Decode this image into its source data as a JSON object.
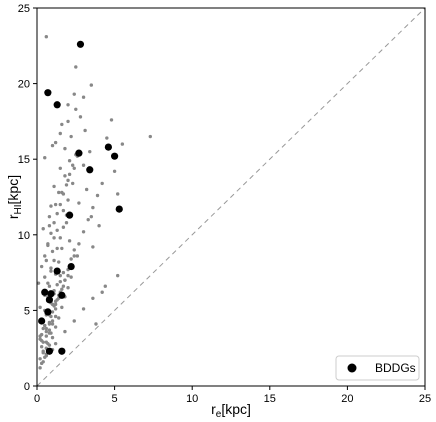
{
  "chart_data": {
    "type": "scatter",
    "xlabel": "r",
    "xlabel_sub": "e",
    "xlabel_unit": "[kpc]",
    "ylabel": "r",
    "ylabel_sub": "HI",
    "ylabel_unit": "[kpc]",
    "xlim": [
      0,
      25
    ],
    "ylim": [
      0,
      25
    ],
    "xticks": [
      "0",
      "5",
      "10",
      "15",
      "20",
      "25"
    ],
    "yticks": [
      "0",
      "5",
      "10",
      "15",
      "20",
      "25"
    ],
    "grid": false,
    "legend_position": "bottom-right",
    "reference_line": {
      "style": "dashed",
      "from": [
        0,
        0
      ],
      "to": [
        25,
        25
      ],
      "color": "#999999"
    },
    "series": [
      {
        "name": "",
        "color": "#888888",
        "marker": "small-dot",
        "x": [
          0.1,
          0.2,
          0.2,
          0.3,
          0.3,
          0.3,
          0.4,
          0.4,
          0.4,
          0.5,
          0.5,
          0.5,
          0.6,
          0.6,
          0.6,
          0.6,
          0.7,
          0.7,
          0.7,
          0.8,
          0.8,
          0.8,
          0.9,
          0.9,
          0.9,
          1.0,
          1.0,
          1.0,
          1.1,
          1.1,
          1.1,
          1.2,
          1.2,
          1.2,
          1.3,
          1.3,
          1.4,
          1.4,
          1.5,
          1.5,
          1.6,
          1.6,
          1.7,
          1.7,
          1.8,
          1.8,
          1.9,
          2.0,
          2.0,
          2.1,
          2.1,
          2.2,
          2.3,
          2.4,
          2.5,
          2.6,
          2.7,
          2.8,
          3.0,
          3.1,
          3.2,
          3.4,
          3.5,
          3.6,
          3.8,
          4.0,
          4.2,
          4.5,
          4.8,
          5.0,
          5.2,
          5.5,
          7.3,
          0.6,
          0.8,
          1.0,
          1.2,
          1.4,
          1.6,
          1.8,
          2.0,
          2.2,
          2.4,
          0.3,
          0.5,
          0.7,
          0.9,
          1.1,
          1.3,
          1.5,
          0.4,
          0.6,
          0.8,
          1.0,
          1.2,
          0.2,
          0.4,
          0.6,
          0.8,
          1.0,
          0.3,
          0.5,
          0.7,
          0.9,
          1.1,
          1.3,
          1.5,
          1.7,
          1.9,
          2.1,
          2.3,
          2.5,
          0.2,
          0.4,
          0.6,
          0.8,
          1.0,
          1.2,
          1.4,
          1.6,
          1.8,
          2.0,
          2.2,
          0.5,
          0.7,
          0.9,
          1.1,
          1.3,
          1.5,
          1.7,
          1.9,
          0.3,
          0.6,
          0.9,
          1.2,
          1.5,
          1.8,
          2.1,
          2.4,
          2.7,
          3.0,
          3.3,
          3.6,
          3.9,
          4.2,
          0.4,
          0.8,
          1.2,
          1.6,
          2.0,
          2.4,
          0.5,
          1.0,
          1.5,
          2.0,
          2.5,
          3.0,
          3.5,
          0.6,
          1.2,
          1.8,
          2.4,
          3.0,
          3.6,
          4.4,
          5.2,
          0.2,
          0.5,
          0.8,
          1.1,
          1.4,
          1.7,
          2.0,
          2.3,
          2.6
        ],
        "y": [
          6.8,
          5.2,
          3.1,
          4.4,
          2.6,
          1.5,
          6.1,
          3.8,
          2.2,
          5.0,
          7.2,
          1.9,
          4.7,
          8.3,
          3.3,
          23.1,
          5.9,
          9.4,
          2.8,
          4.1,
          10.6,
          6.6,
          7.8,
          3.5,
          11.9,
          5.4,
          8.9,
          2.4,
          6.3,
          9.8,
          13.2,
          4.6,
          7.4,
          16.1,
          5.7,
          10.3,
          8.2,
          12.8,
          6.9,
          14.4,
          9.1,
          17.3,
          7.5,
          11.6,
          13.9,
          15.7,
          10.8,
          12.3,
          18.6,
          14.9,
          9.6,
          16.5,
          13.4,
          19.3,
          21.1,
          15.2,
          12.1,
          17.8,
          14.6,
          16.9,
          13.0,
          15.5,
          11.2,
          9.2,
          4.1,
          10.6,
          6.2,
          16.4,
          17.6,
          14.2,
          12.7,
          16.0,
          16.5,
          2.5,
          3.7,
          4.3,
          5.1,
          5.8,
          6.4,
          7.0,
          7.7,
          8.4,
          9.0,
          3.4,
          4.0,
          4.8,
          5.5,
          6.1,
          6.7,
          7.3,
          2.9,
          3.6,
          4.2,
          4.9,
          5.6,
          1.8,
          2.3,
          2.9,
          3.5,
          4.1,
          7.9,
          8.6,
          9.3,
          10.1,
          10.8,
          11.4,
          12.0,
          12.7,
          13.3,
          14.0,
          14.6,
          15.3,
          1.2,
          1.6,
          2.0,
          2.7,
          3.2,
          3.9,
          4.5,
          5.2,
          5.9,
          6.5,
          7.2,
          6.0,
          6.8,
          7.6,
          8.3,
          9.1,
          9.8,
          10.5,
          11.3,
          3.0,
          3.8,
          4.6,
          5.4,
          6.2,
          7.0,
          7.8,
          8.6,
          9.4,
          10.2,
          11.0,
          11.8,
          12.6,
          13.4,
          10.4,
          11.2,
          12.0,
          12.8,
          13.6,
          14.4,
          15.1,
          15.9,
          16.7,
          17.5,
          18.3,
          19.1,
          19.9,
          2.1,
          2.8,
          3.6,
          4.3,
          5.1,
          5.8,
          6.6,
          7.3,
          3.3,
          4.0,
          4.7,
          5.3,
          6.0,
          6.6,
          7.3,
          7.9,
          8.6
        ]
      },
      {
        "name": "BDDGs",
        "color": "#000000",
        "marker": "large-dot",
        "x": [
          2.8,
          0.7,
          1.3,
          2.7,
          4.6,
          5.0,
          3.4,
          2.1,
          5.3,
          1.3,
          2.2,
          0.5,
          0.9,
          1.6,
          0.8,
          0.7,
          0.3,
          0.8,
          1.6
        ],
        "y": [
          22.6,
          19.4,
          18.6,
          15.4,
          15.8,
          15.2,
          14.3,
          11.3,
          11.7,
          7.6,
          7.9,
          6.2,
          6.1,
          6.0,
          5.7,
          4.9,
          4.3,
          2.3,
          2.3
        ]
      }
    ]
  }
}
